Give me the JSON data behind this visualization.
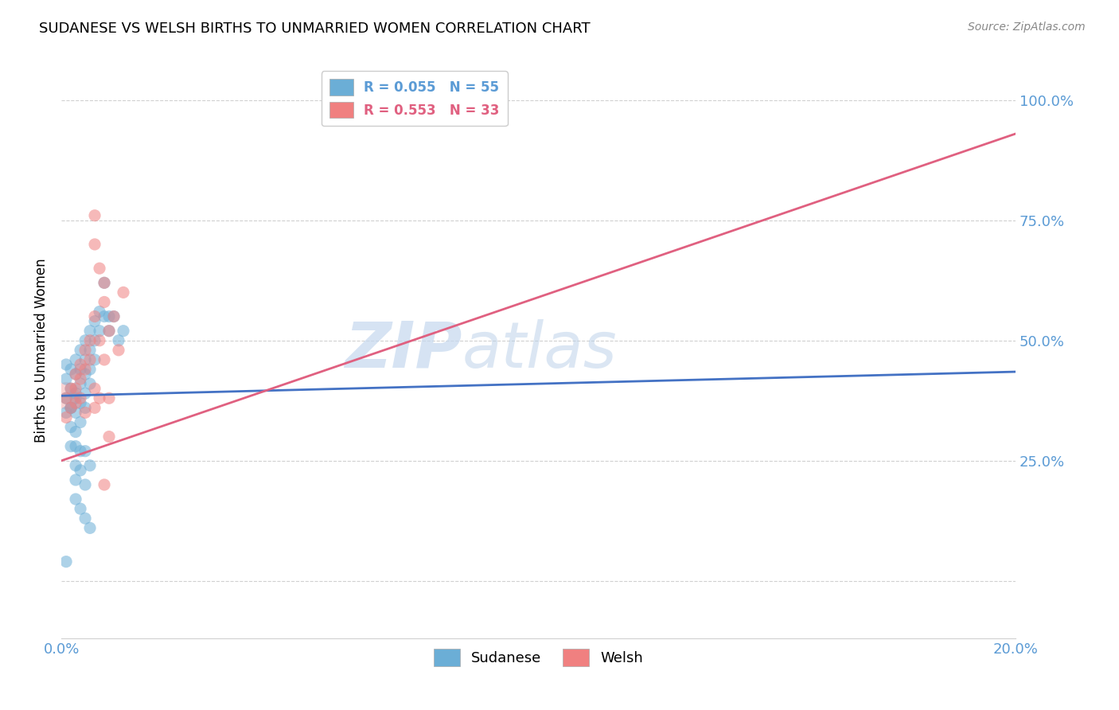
{
  "title": "SUDANESE VS WELSH BIRTHS TO UNMARRIED WOMEN CORRELATION CHART",
  "source": "Source: ZipAtlas.com",
  "ylabel": "Births to Unmarried Women",
  "watermark_zip": "ZIP",
  "watermark_atlas": "atlas",
  "legend": [
    {
      "label": "R = 0.055   N = 55",
      "color": "#5b9bd5"
    },
    {
      "label": "R = 0.553   N = 33",
      "color": "#e06080"
    }
  ],
  "sudanese_scatter": [
    [
      0.001,
      0.42
    ],
    [
      0.001,
      0.45
    ],
    [
      0.001,
      0.38
    ],
    [
      0.001,
      0.35
    ],
    [
      0.002,
      0.44
    ],
    [
      0.002,
      0.4
    ],
    [
      0.002,
      0.36
    ],
    [
      0.002,
      0.32
    ],
    [
      0.003,
      0.46
    ],
    [
      0.003,
      0.43
    ],
    [
      0.003,
      0.39
    ],
    [
      0.003,
      0.35
    ],
    [
      0.003,
      0.31
    ],
    [
      0.003,
      0.28
    ],
    [
      0.004,
      0.48
    ],
    [
      0.004,
      0.44
    ],
    [
      0.004,
      0.41
    ],
    [
      0.004,
      0.37
    ],
    [
      0.004,
      0.33
    ],
    [
      0.005,
      0.5
    ],
    [
      0.005,
      0.46
    ],
    [
      0.005,
      0.43
    ],
    [
      0.005,
      0.39
    ],
    [
      0.005,
      0.36
    ],
    [
      0.006,
      0.52
    ],
    [
      0.006,
      0.48
    ],
    [
      0.006,
      0.44
    ],
    [
      0.006,
      0.41
    ],
    [
      0.007,
      0.54
    ],
    [
      0.007,
      0.5
    ],
    [
      0.007,
      0.46
    ],
    [
      0.008,
      0.56
    ],
    [
      0.008,
      0.52
    ],
    [
      0.009,
      0.62
    ],
    [
      0.009,
      0.55
    ],
    [
      0.01,
      0.55
    ],
    [
      0.01,
      0.52
    ],
    [
      0.011,
      0.55
    ],
    [
      0.012,
      0.5
    ],
    [
      0.013,
      0.52
    ],
    [
      0.002,
      0.28
    ],
    [
      0.003,
      0.24
    ],
    [
      0.003,
      0.21
    ],
    [
      0.004,
      0.27
    ],
    [
      0.004,
      0.23
    ],
    [
      0.005,
      0.2
    ],
    [
      0.005,
      0.27
    ],
    [
      0.006,
      0.24
    ],
    [
      0.002,
      0.36
    ],
    [
      0.003,
      0.38
    ],
    [
      0.001,
      0.04
    ],
    [
      0.003,
      0.17
    ],
    [
      0.004,
      0.15
    ],
    [
      0.005,
      0.13
    ],
    [
      0.006,
      0.11
    ]
  ],
  "welsh_scatter": [
    [
      0.001,
      0.38
    ],
    [
      0.001,
      0.34
    ],
    [
      0.002,
      0.4
    ],
    [
      0.002,
      0.36
    ],
    [
      0.003,
      0.43
    ],
    [
      0.003,
      0.4
    ],
    [
      0.003,
      0.37
    ],
    [
      0.004,
      0.45
    ],
    [
      0.004,
      0.42
    ],
    [
      0.004,
      0.38
    ],
    [
      0.005,
      0.48
    ],
    [
      0.005,
      0.44
    ],
    [
      0.005,
      0.35
    ],
    [
      0.006,
      0.5
    ],
    [
      0.006,
      0.46
    ],
    [
      0.007,
      0.76
    ],
    [
      0.007,
      0.7
    ],
    [
      0.008,
      0.65
    ],
    [
      0.009,
      0.58
    ],
    [
      0.009,
      0.62
    ],
    [
      0.01,
      0.52
    ],
    [
      0.01,
      0.38
    ],
    [
      0.011,
      0.55
    ],
    [
      0.012,
      0.48
    ],
    [
      0.013,
      0.6
    ],
    [
      0.007,
      0.55
    ],
    [
      0.008,
      0.5
    ],
    [
      0.009,
      0.46
    ],
    [
      0.01,
      0.3
    ],
    [
      0.007,
      0.36
    ],
    [
      0.009,
      0.2
    ],
    [
      0.007,
      0.4
    ],
    [
      0.008,
      0.38
    ]
  ],
  "sudanese_line": [
    [
      0.0,
      0.385
    ],
    [
      0.2,
      0.435
    ]
  ],
  "welsh_line": [
    [
      0.0,
      0.25
    ],
    [
      0.2,
      0.93
    ]
  ],
  "xlim": [
    0.0,
    0.2
  ],
  "ylim": [
    -0.12,
    1.08
  ],
  "ytick_positions": [
    0.0,
    0.25,
    0.5,
    0.75,
    1.0
  ],
  "ytick_labels": [
    "",
    "25.0%",
    "50.0%",
    "75.0%",
    "100.0%"
  ],
  "xtick_positions": [
    0.0,
    0.02,
    0.04,
    0.06,
    0.08,
    0.1,
    0.12,
    0.14,
    0.16,
    0.18,
    0.2
  ],
  "scatter_size": 120,
  "scatter_color_blue": "#6baed6",
  "scatter_color_pink": "#f08080",
  "line_color_blue": "#4472c4",
  "line_color_pink": "#e06080",
  "grid_color": "#d0d0d0",
  "axis_color": "#5b9bd5",
  "background_color": "#ffffff",
  "top_border_color": "#d0d0d0"
}
